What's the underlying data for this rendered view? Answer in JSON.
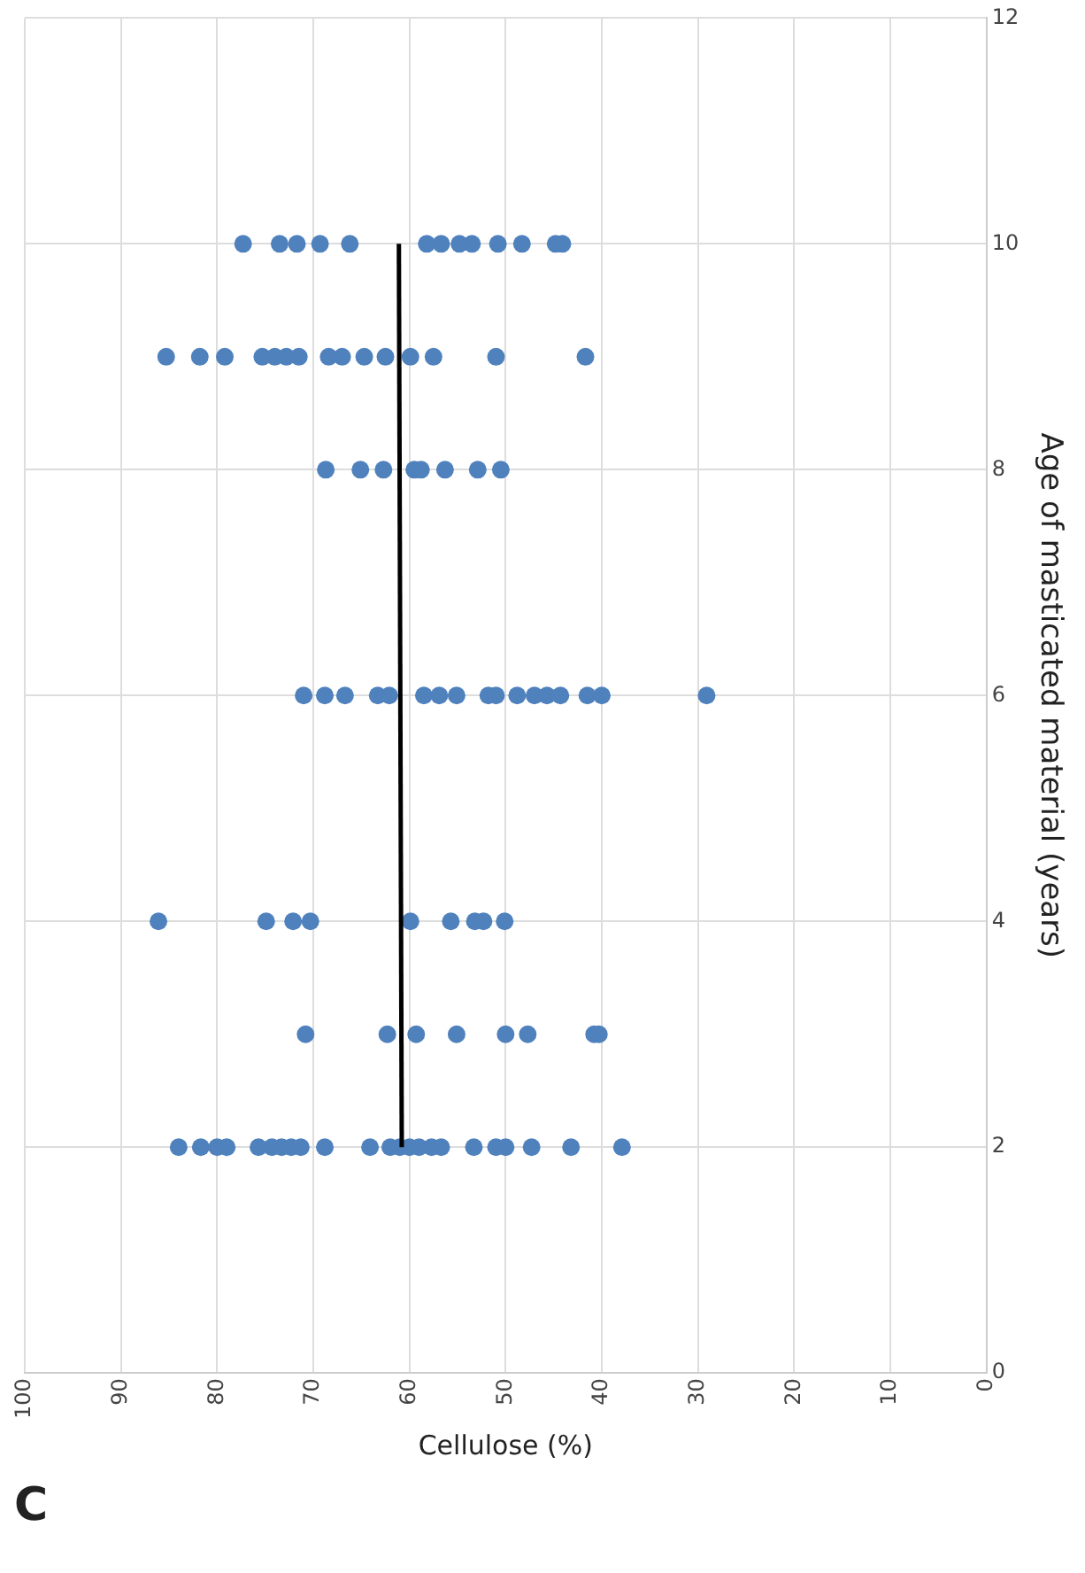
{
  "chart_data": {
    "type": "scatter",
    "xlabel": "Cellulose (%)",
    "ylabel": "Age of masticated material (years)",
    "xlim": [
      100,
      0
    ],
    "xticks": [
      100,
      90,
      80,
      70,
      60,
      50,
      40,
      30,
      20,
      10,
      0
    ],
    "ylim": [
      0,
      12
    ],
    "yticks": [
      0,
      2,
      4,
      6,
      8,
      10,
      12
    ],
    "grid": true,
    "legend": false,
    "marker": "circle",
    "annotations": [
      "C"
    ],
    "series": [
      {
        "color": "#4f81bd",
        "x": [
          84,
          81.7,
          80,
          79,
          75.7,
          74.3,
          73.3,
          72.3,
          71.3,
          68.8,
          64.1,
          62,
          61,
          60,
          59,
          57.7,
          56.7,
          53.3,
          51,
          50,
          47.3,
          43.2,
          37.9,
          70.8,
          62.3,
          59.3,
          55.1,
          50,
          47.7,
          40.8,
          40.3,
          86.1,
          74.9,
          72.1,
          70.3,
          59.9,
          55.7,
          53.2,
          52.3,
          50.1,
          71,
          68.8,
          66.7,
          63.3,
          62.1,
          58.5,
          56.9,
          55.1,
          51.8,
          51,
          48.8,
          47,
          45.7,
          44.3,
          41.5,
          40,
          29.1,
          68.7,
          65.1,
          62.7,
          59.5,
          58.8,
          56.3,
          52.9,
          50.5,
          85.3,
          81.8,
          79.2,
          75.3,
          74,
          72.8,
          71.5,
          68.4,
          67,
          64.7,
          62.5,
          59.9,
          57.5,
          51,
          41.7,
          77.3,
          73.5,
          71.7,
          69.3,
          66.2,
          58.2,
          56.7,
          54.8,
          53.5,
          50.8,
          48.3,
          44.8,
          44.1
        ],
        "values": [
          2,
          2,
          2,
          2,
          2,
          2,
          2,
          2,
          2,
          2,
          2,
          2,
          2,
          2,
          2,
          2,
          2,
          2,
          2,
          2,
          2,
          2,
          2,
          3,
          3,
          3,
          3,
          3,
          3,
          3,
          3,
          4,
          4,
          4,
          4,
          4,
          4,
          4,
          4,
          4,
          6,
          6,
          6,
          6,
          6,
          6,
          6,
          6,
          6,
          6,
          6,
          6,
          6,
          6,
          6,
          6,
          6,
          8,
          8,
          8,
          8,
          8,
          8,
          8,
          8,
          9,
          9,
          9,
          9,
          9,
          9,
          9,
          9,
          9,
          9,
          9,
          9,
          9,
          9,
          9,
          10,
          10,
          10,
          10,
          10,
          10,
          10,
          10,
          10,
          10,
          10,
          10,
          10
        ]
      },
      {
        "type": "line",
        "color": "#000000",
        "marker": "none",
        "line_style": "solid",
        "x": [
          60.8,
          61.1
        ],
        "values": [
          2,
          10
        ]
      }
    ]
  }
}
